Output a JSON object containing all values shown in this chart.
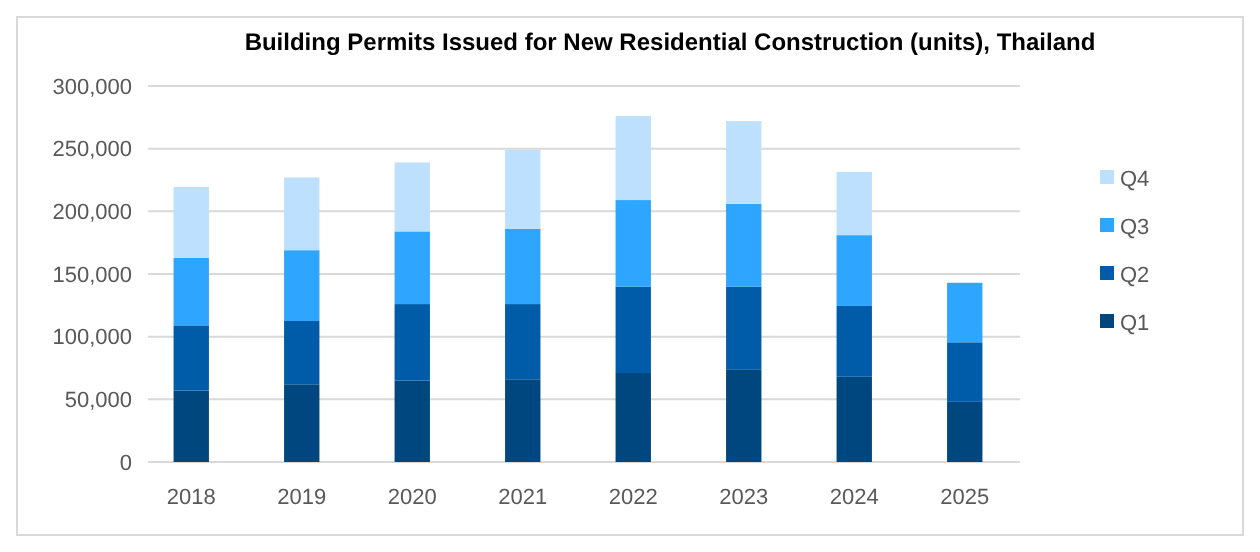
{
  "chart_data": {
    "type": "bar",
    "title": "Building Permits Issued for New Residential Construction (units), Thailand",
    "categories": [
      "2018",
      "2019",
      "2020",
      "2021",
      "2022",
      "2023",
      "2024",
      "2025"
    ],
    "stacked": true,
    "series": [
      {
        "name": "Q1",
        "color": "#00467f",
        "values": [
          57000,
          62000,
          65000,
          66000,
          71000,
          74000,
          68000,
          48000
        ]
      },
      {
        "name": "Q2",
        "color": "#005ca8",
        "values": [
          52000,
          50500,
          61000,
          60000,
          69000,
          66000,
          56500,
          47500
        ]
      },
      {
        "name": "Q3",
        "color": "#2ea6ff",
        "values": [
          54000,
          56500,
          58000,
          60000,
          69000,
          66000,
          56500,
          47500
        ]
      },
      {
        "name": "Q4",
        "color": "#bde0fe",
        "values": [
          56500,
          58000,
          55000,
          63000,
          67000,
          66000,
          50500,
          null
        ]
      }
    ],
    "ylim": [
      0,
      300000
    ],
    "yticks": [
      {
        "value": 0,
        "label": "0"
      },
      {
        "value": 50000,
        "label": "50,000"
      },
      {
        "value": 100000,
        "label": "100,000"
      },
      {
        "value": 150000,
        "label": "150,000"
      },
      {
        "value": 200000,
        "label": "200,000"
      },
      {
        "value": 250000,
        "label": "250,000"
      },
      {
        "value": 300000,
        "label": "300,000"
      }
    ],
    "grid": "y",
    "legend": "right"
  }
}
